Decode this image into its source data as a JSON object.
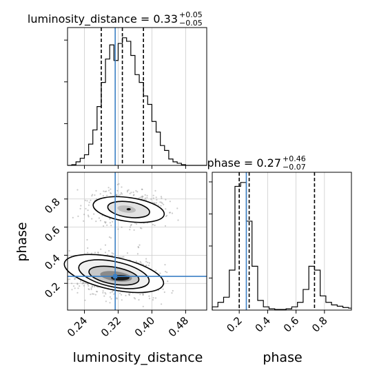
{
  "chart_data": [
    {
      "type": "histogram",
      "panel": "luminosity_distance-marginal",
      "title": "luminosity_distance = 0.33",
      "title_upper": "+0.05",
      "title_lower": "−0.05",
      "xlim": [
        0.2,
        0.53
      ],
      "xticks": [
        0.24,
        0.32,
        0.4,
        0.48
      ],
      "median": 0.33,
      "quantiles": [
        0.28,
        0.33,
        0.38
      ],
      "truth": 0.313,
      "bin_edges": [
        0.2,
        0.21,
        0.22,
        0.23,
        0.24,
        0.25,
        0.26,
        0.27,
        0.28,
        0.29,
        0.3,
        0.31,
        0.32,
        0.33,
        0.34,
        0.35,
        0.36,
        0.37,
        0.38,
        0.39,
        0.4,
        0.41,
        0.42,
        0.43,
        0.44,
        0.45,
        0.46,
        0.47,
        0.48,
        0.49,
        0.5,
        0.51,
        0.52,
        0.53
      ],
      "counts": [
        0,
        1,
        5,
        10,
        15,
        30,
        50,
        83,
        117,
        150,
        170,
        148,
        172,
        180,
        175,
        155,
        128,
        117,
        98,
        86,
        62,
        47,
        28,
        21,
        9,
        5,
        3,
        1,
        0,
        0,
        0,
        0,
        0
      ]
    },
    {
      "type": "histogram",
      "panel": "phase-marginal",
      "title": "phase = 0.27",
      "title_upper": "+0.46",
      "title_lower": "−0.07",
      "xlim": [
        0.01,
        0.99
      ],
      "xticks": [
        0.2,
        0.4,
        0.6,
        0.8
      ],
      "median": 0.27,
      "quantiles": [
        0.2,
        0.27,
        0.73
      ],
      "truth": 0.25,
      "bin_edges": [
        0.01,
        0.05,
        0.09,
        0.13,
        0.17,
        0.21,
        0.25,
        0.29,
        0.33,
        0.37,
        0.41,
        0.45,
        0.49,
        0.53,
        0.57,
        0.61,
        0.65,
        0.69,
        0.73,
        0.77,
        0.81,
        0.85,
        0.89,
        0.93,
        0.97,
        0.99
      ],
      "counts": [
        5,
        12,
        20,
        62,
        192,
        198,
        138,
        68,
        15,
        5,
        2,
        1,
        1,
        2,
        5,
        12,
        32,
        68,
        62,
        22,
        12,
        8,
        6,
        4,
        3
      ]
    },
    {
      "type": "scatter",
      "panel": "phase-vs-luminosity_distance",
      "xlabel": "luminosity_distance",
      "ylabel": "phase",
      "xlim": [
        0.2,
        0.53
      ],
      "ylim": [
        0.01,
        0.99
      ],
      "xticks": [
        0.24,
        0.32,
        0.4,
        0.48
      ],
      "yticks": [
        0.2,
        0.4,
        0.6,
        0.8
      ],
      "truth": [
        0.313,
        0.25
      ],
      "modes": [
        {
          "x": 0.34,
          "y": 0.74,
          "weight": 0.33
        },
        {
          "x": 0.31,
          "y": 0.26,
          "weight": 0.67
        }
      ]
    }
  ],
  "colors": {
    "truth": "#3a7fc4",
    "hist": "#000000",
    "scatter": "#8a8a8a",
    "grid": "#cccccc"
  },
  "labels": {
    "x_luminosity": "luminosity_distance",
    "x_phase": "phase",
    "y_phase": "phase"
  }
}
